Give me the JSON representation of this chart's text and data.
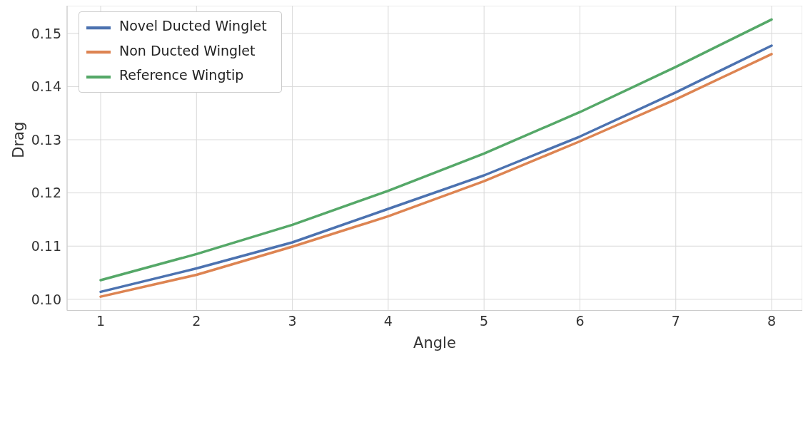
{
  "chart_data": {
    "type": "line",
    "xlabel": "Angle",
    "ylabel": "Drag",
    "x": [
      1,
      2,
      3,
      4,
      5,
      6,
      7,
      8
    ],
    "series": [
      {
        "name": "Novel Ducted Winglet",
        "color": "#4c72b0",
        "values": [
          0.1014,
          0.1058,
          0.1107,
          0.117,
          0.1233,
          0.1306,
          0.1389,
          0.1477
        ]
      },
      {
        "name": "Non Ducted Winglet",
        "color": "#dd8452",
        "values": [
          0.1005,
          0.1046,
          0.1099,
          0.1156,
          0.1222,
          0.1297,
          0.1376,
          0.1461
        ]
      },
      {
        "name": "Reference Wingtip",
        "color": "#55a868",
        "values": [
          0.1036,
          0.1085,
          0.114,
          0.1204,
          0.1274,
          0.1352,
          0.1437,
          0.1526
        ]
      }
    ],
    "xlim": [
      0.65,
      8.32
    ],
    "ylim": [
      0.0979,
      0.1552
    ],
    "xticks": [
      1,
      2,
      3,
      4,
      5,
      6,
      7,
      8
    ],
    "yticks": [
      {
        "value": 0.1,
        "label": "0.10"
      },
      {
        "value": 0.11,
        "label": "0.11"
      },
      {
        "value": 0.12,
        "label": "0.12"
      },
      {
        "value": 0.13,
        "label": "0.13"
      },
      {
        "value": 0.14,
        "label": "0.14"
      },
      {
        "value": 0.15,
        "label": "0.15"
      }
    ],
    "grid": true,
    "legend": "top left",
    "marker": "none",
    "line_style": "solid"
  }
}
